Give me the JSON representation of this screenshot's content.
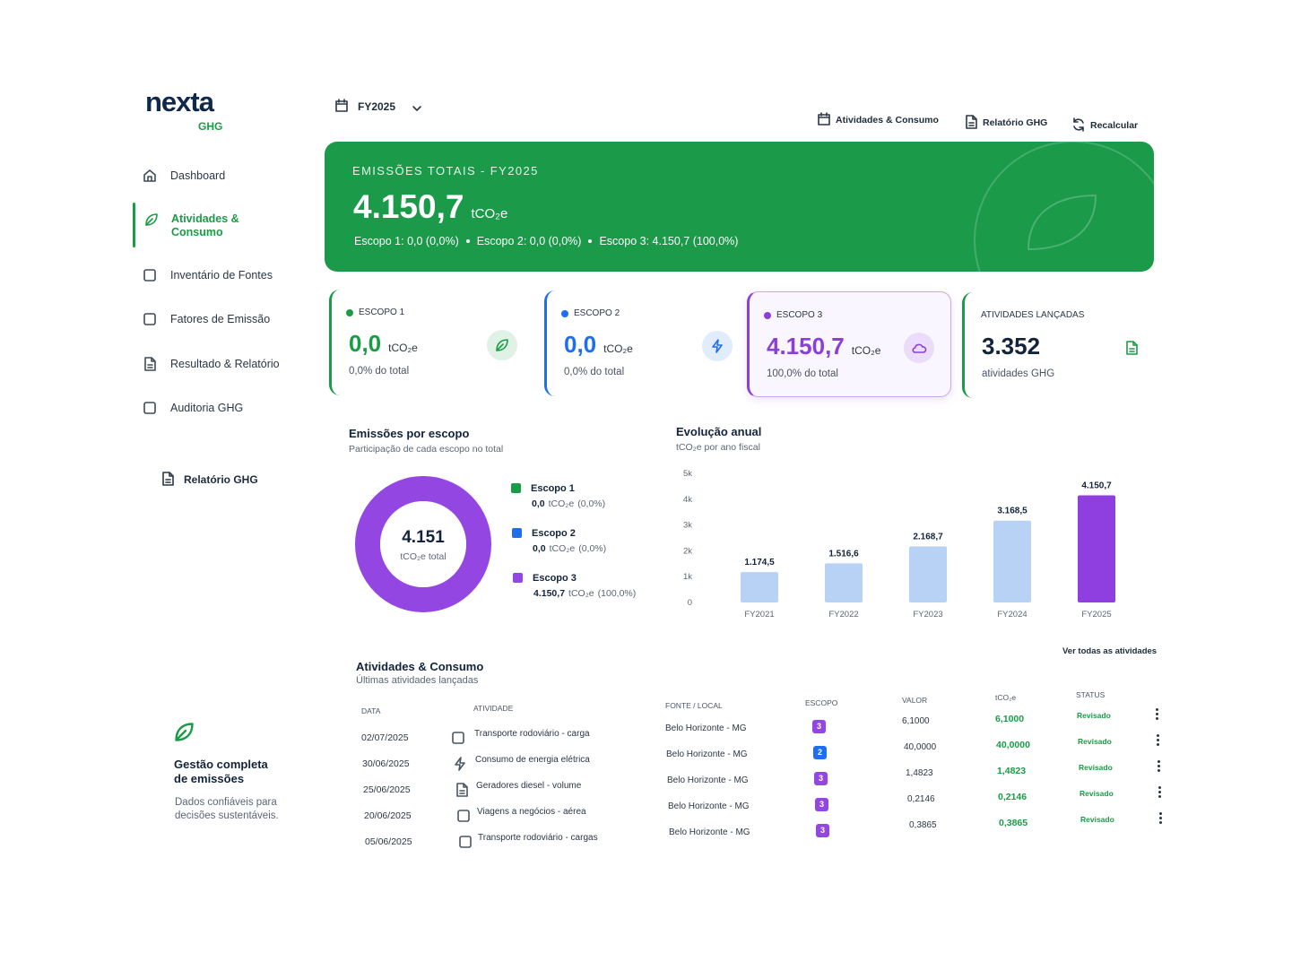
{
  "brand": {
    "name": "nexta",
    "product": "GHG"
  },
  "sidebar": {
    "nav": [
      "Dashboard",
      "Atividades & Consumo",
      "Inventário de Fontes",
      "Fatores de Emissão",
      "Resultado & Relatório",
      "Auditoria GHG"
    ],
    "active": 1,
    "report_link": "Relatório GHG",
    "promo": {
      "title": "Gestão completa de emissões",
      "text": "Dados confiáveis para decisões sustentáveis."
    }
  },
  "topbar": {
    "period": "FY2025",
    "actions": [
      "Atividades & Consumo",
      "Relatório GHG",
      "Recalcular"
    ]
  },
  "summary": {
    "label": "EMISSÕES TOTAIS - FY2025",
    "value": "4.150,7",
    "unit": "tCO₂e",
    "breakdown": [
      "Escopo 1: 0,0 (0,0%)",
      "Escopo 2: 0,0 (0,0%)",
      "Escopo 3: 4.150,7 (100,0%)"
    ]
  },
  "kpis": [
    {
      "label": "ESCOPO 1",
      "value": "0,0",
      "unit": "tCO₂e",
      "note": "0,0% do total",
      "color": "#1a9c46",
      "value_color": "#1a9c46"
    },
    {
      "label": "ESCOPO 2",
      "value": "0,0",
      "unit": "tCO₂e",
      "note": "0,0% do total",
      "color": "#1e6ff0",
      "value_color": "#1e6ff0"
    },
    {
      "label": "ESCOPO 3",
      "value": "4.150,7",
      "unit": "tCO₂e",
      "note": "100,0% do total",
      "color": "#8b3fd9",
      "value_color": "#8b3fd9",
      "highlight": true
    },
    {
      "label": "ATIVIDADES LANÇADAS",
      "value": "3.352",
      "note": "atividades GHG",
      "color": "#1a9c46",
      "value_color": "#13233a"
    }
  ],
  "chart_data": [
    {
      "type": "donut",
      "title": "Emissões por escopo",
      "subtitle": "Participação de cada escopo no total",
      "center_value": "4.151",
      "center_label": "tCO₂e total",
      "categories": [
        "Escopo 1",
        "Escopo 2",
        "Escopo 3"
      ],
      "values": [
        0,
        0,
        4150.7
      ],
      "value_labels": [
        "0,0",
        "0,0",
        "4.150,7"
      ],
      "unit": "tCO₂e",
      "shares": [
        "(0,0%)",
        "(0,0%)",
        "(100,0%)"
      ],
      "colors": [
        "#1a9c46",
        "#1e6ff0",
        "#9446e3"
      ]
    },
    {
      "type": "bar",
      "title": "Evolução anual",
      "subtitle": "tCO₂e por ano fiscal",
      "categories": [
        "FY2021",
        "FY2022",
        "FY2023",
        "FY2024",
        "FY2025"
      ],
      "values": [
        1174.5,
        1516.6,
        2168.7,
        3168.5,
        4150.7
      ],
      "value_labels": [
        "1.174,5",
        "1.516,6",
        "2.168,7",
        "3.168,5",
        "4.150,7"
      ],
      "colors": [
        "#b8d2f6",
        "#b8d2f6",
        "#b8d2f6",
        "#b8d2f6",
        "#8f3fe0"
      ],
      "ylim": [
        0,
        5000
      ],
      "yticks": [
        0,
        {
          "value": 1000,
          "label": "1k"
        },
        {
          "value": 2000,
          "label": "2k"
        },
        {
          "value": 3000,
          "label": "3k"
        },
        {
          "value": 4000,
          "label": "4k"
        },
        {
          "value": 5000,
          "label": "5k"
        }
      ],
      "grid": false
    }
  ],
  "table": {
    "title": "Atividades & Consumo",
    "subtitle": "Últimas atividades lançadas",
    "link": "Ver todas as atividades",
    "columns": [
      "DATA",
      "ATIVIDADE",
      "FONTE / LOCAL",
      "ESCOPO",
      "VALOR",
      "tCO₂e",
      "STATUS"
    ],
    "rows": [
      [
        "02/07/2025",
        "Transporte rodoviário - carga",
        "Belo Horizonte - MG",
        "3",
        "6,1000",
        "6,1000",
        "Revisado"
      ],
      [
        "30/06/2025",
        "Consumo de energia elétrica",
        "Belo Horizonte - MG",
        "2",
        "40,0000",
        "40,0000",
        "Revisado"
      ],
      [
        "25/06/2025",
        "Geradores diesel - volume",
        "Belo Horizonte - MG",
        "3",
        "1,4823",
        "1,4823",
        "Revisado"
      ],
      [
        "20/06/2025",
        "Viagens a negócios - aérea",
        "Belo Horizonte - MG",
        "3",
        "0,2146",
        "0,2146",
        "Revisado"
      ],
      [
        "05/06/2025",
        "Transporte rodoviário - cargas",
        "Belo Horizonte - MG",
        "3",
        "0,3865",
        "0,3865",
        "Revisado"
      ]
    ]
  }
}
